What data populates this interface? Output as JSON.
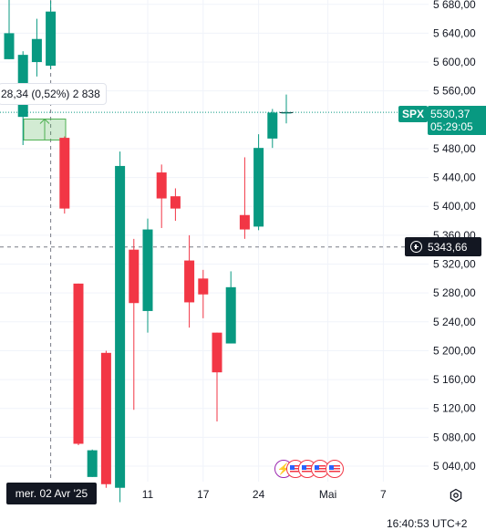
{
  "symbol": "SPX",
  "last_price": "5530,37",
  "countdown": "05:29:05",
  "crosshair_price": "5343,66",
  "crosshair_date": "mer. 02 Avr '25",
  "tooltip_text": "28,34 (0,52%) 2 838",
  "clock": "16:40:53 UTC+2",
  "lightning_glyph": "⚡",
  "colors": {
    "up": "#089981",
    "down": "#f23645",
    "grid": "#f0f3fa",
    "text": "#131722"
  },
  "chart_data": {
    "type": "candlestick",
    "y_axis_labels": [
      "5 680,00",
      "5 640,00",
      "5 600,00",
      "5 560,00",
      "5 480,00",
      "5 440,00",
      "5 400,00",
      "5 360,00",
      "5 320,00",
      "5 280,00",
      "5 240,00",
      "5 200,00",
      "5 160,00",
      "5 120,00",
      "5 080,00",
      "5 040,00"
    ],
    "y_axis_values": [
      5680,
      5640,
      5600,
      5560,
      5480,
      5440,
      5400,
      5360,
      5320,
      5280,
      5240,
      5200,
      5160,
      5120,
      5080,
      5040
    ],
    "x_axis_labels": [
      {
        "label": "11",
        "index": 10
      },
      {
        "label": "17",
        "index": 14
      },
      {
        "label": "24",
        "index": 18
      },
      {
        "label": "Mai",
        "index": 23
      },
      {
        "label": "7",
        "index": 27
      }
    ],
    "candles": [
      {
        "o": 5604,
        "h": 5690,
        "l": 5604,
        "c": 5640
      },
      {
        "o": 5524,
        "h": 5615,
        "l": 5485,
        "c": 5610
      },
      {
        "o": 5600,
        "h": 5660,
        "l": 5580,
        "c": 5632
      },
      {
        "o": 5595,
        "h": 5685,
        "l": 5590,
        "c": 5670
      },
      {
        "o": 5495,
        "h": 5497,
        "l": 5390,
        "c": 5397
      },
      {
        "o": 5293,
        "h": 5293,
        "l": 5069,
        "c": 5071
      },
      {
        "o": 5025,
        "h": 5063,
        "l": 5025,
        "c": 5062
      },
      {
        "o": 5197,
        "h": 5200,
        "l": 5010,
        "c": 5015
      },
      {
        "o": 5010,
        "h": 5476,
        "l": 4990,
        "c": 5456
      },
      {
        "o": 5340,
        "h": 5355,
        "l": 5118,
        "c": 5266
      },
      {
        "o": 5255,
        "h": 5383,
        "l": 5225,
        "c": 5368
      },
      {
        "o": 5447,
        "h": 5458,
        "l": 5370,
        "c": 5411
      },
      {
        "o": 5414,
        "h": 5425,
        "l": 5380,
        "c": 5397
      },
      {
        "o": 5325,
        "h": 5360,
        "l": 5232,
        "c": 5267
      },
      {
        "o": 5300,
        "h": 5312,
        "l": 5245,
        "c": 5278
      },
      {
        "o": 5225,
        "h": 5225,
        "l": 5102,
        "c": 5170
      },
      {
        "o": 5210,
        "h": 5310,
        "l": 5210,
        "c": 5288
      },
      {
        "o": 5388,
        "h": 5468,
        "l": 5355,
        "c": 5368
      },
      {
        "o": 5372,
        "h": 5500,
        "l": 5367,
        "c": 5481
      },
      {
        "o": 5494,
        "h": 5535,
        "l": 5481,
        "c": 5530
      },
      {
        "o": 5530,
        "h": 5555,
        "l": 5515,
        "c": 5530
      }
    ]
  }
}
